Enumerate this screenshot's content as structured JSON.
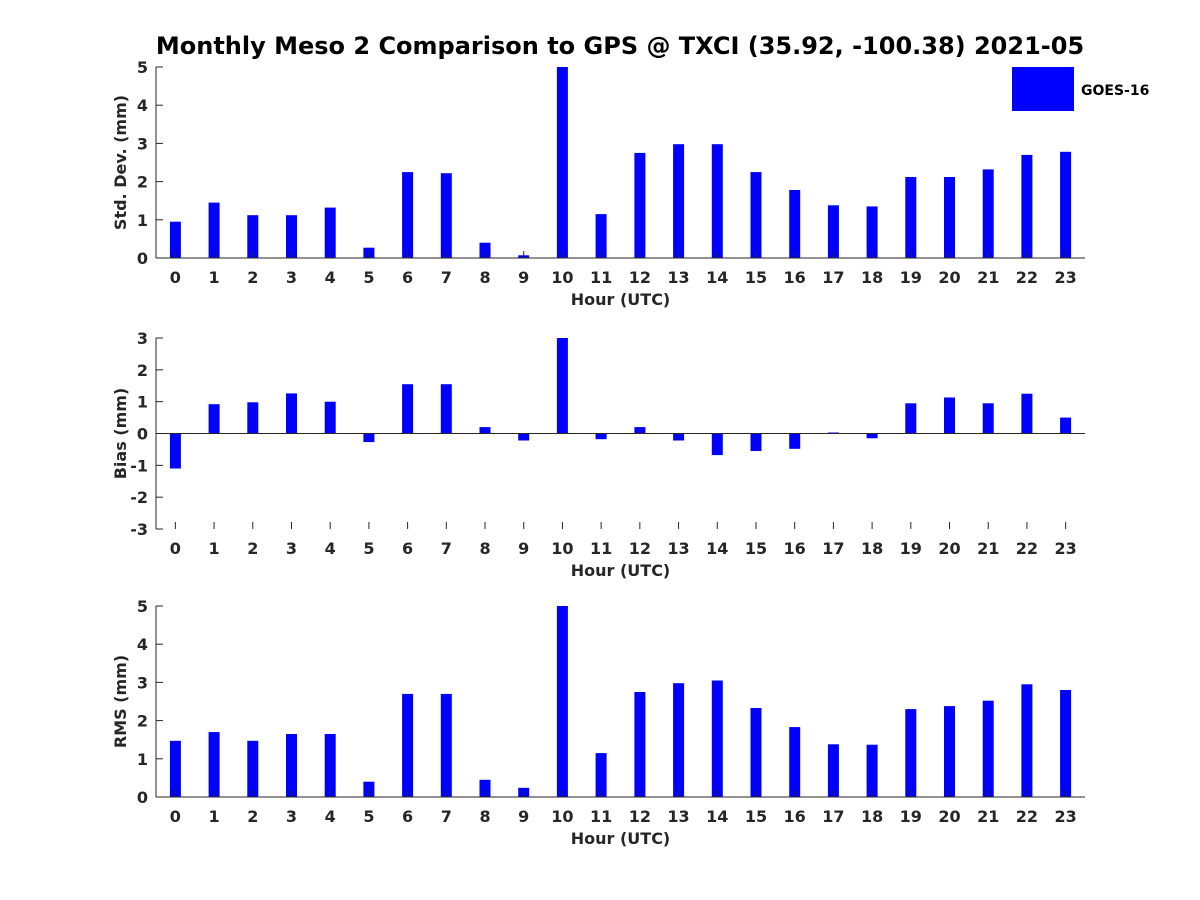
{
  "title": "Monthly Meso 2 Comparison to GPS @ TXCI (35.92, -100.38) 2021-05",
  "legend": {
    "label": "GOES-16",
    "color": "#0000FF"
  },
  "chart_data": [
    {
      "type": "bar",
      "xlabel": "Hour (UTC)",
      "ylabel": "Std. Dev. (mm)",
      "ylim": [
        0,
        5
      ],
      "yticks": [
        0,
        1,
        2,
        3,
        4,
        5
      ],
      "categories": [
        "0",
        "1",
        "2",
        "3",
        "4",
        "5",
        "6",
        "7",
        "8",
        "9",
        "10",
        "11",
        "12",
        "13",
        "14",
        "15",
        "16",
        "17",
        "18",
        "19",
        "20",
        "21",
        "22",
        "23"
      ],
      "series": [
        {
          "name": "GOES-16",
          "values": [
            0.95,
            1.45,
            1.12,
            1.12,
            1.32,
            0.27,
            2.25,
            2.22,
            0.4,
            0.07,
            5.0,
            1.15,
            2.75,
            2.98,
            2.98,
            2.25,
            1.78,
            1.38,
            1.35,
            2.12,
            2.12,
            2.32,
            2.7,
            2.78
          ]
        }
      ],
      "color": "#0000FF",
      "grid": false
    },
    {
      "type": "bar",
      "xlabel": "Hour (UTC)",
      "ylabel": "Bias (mm)",
      "ylim": [
        -3,
        3
      ],
      "yticks": [
        -3,
        -2,
        -1,
        0,
        1,
        2,
        3
      ],
      "categories": [
        "0",
        "1",
        "2",
        "3",
        "4",
        "5",
        "6",
        "7",
        "8",
        "9",
        "10",
        "11",
        "12",
        "13",
        "14",
        "15",
        "16",
        "17",
        "18",
        "19",
        "20",
        "21",
        "22",
        "23"
      ],
      "series": [
        {
          "name": "GOES-16",
          "values": [
            -1.1,
            0.92,
            0.98,
            1.26,
            1.0,
            -0.27,
            1.55,
            1.55,
            0.2,
            -0.22,
            3.0,
            -0.18,
            0.2,
            -0.22,
            -0.68,
            -0.55,
            -0.48,
            0.03,
            -0.15,
            0.95,
            1.13,
            0.95,
            1.25,
            0.5
          ]
        }
      ],
      "color": "#0000FF",
      "grid": false
    },
    {
      "type": "bar",
      "xlabel": "Hour (UTC)",
      "ylabel": "RMS (mm)",
      "ylim": [
        0,
        5
      ],
      "yticks": [
        0,
        1,
        2,
        3,
        4,
        5
      ],
      "categories": [
        "0",
        "1",
        "2",
        "3",
        "4",
        "5",
        "6",
        "7",
        "8",
        "9",
        "10",
        "11",
        "12",
        "13",
        "14",
        "15",
        "16",
        "17",
        "18",
        "19",
        "20",
        "21",
        "22",
        "23"
      ],
      "series": [
        {
          "name": "GOES-16",
          "values": [
            1.47,
            1.7,
            1.47,
            1.65,
            1.65,
            0.4,
            2.7,
            2.7,
            0.45,
            0.24,
            5.0,
            1.15,
            2.75,
            2.98,
            3.05,
            2.33,
            1.83,
            1.38,
            1.37,
            2.3,
            2.38,
            2.52,
            2.95,
            2.8
          ]
        }
      ],
      "color": "#0000FF",
      "grid": false
    }
  ]
}
